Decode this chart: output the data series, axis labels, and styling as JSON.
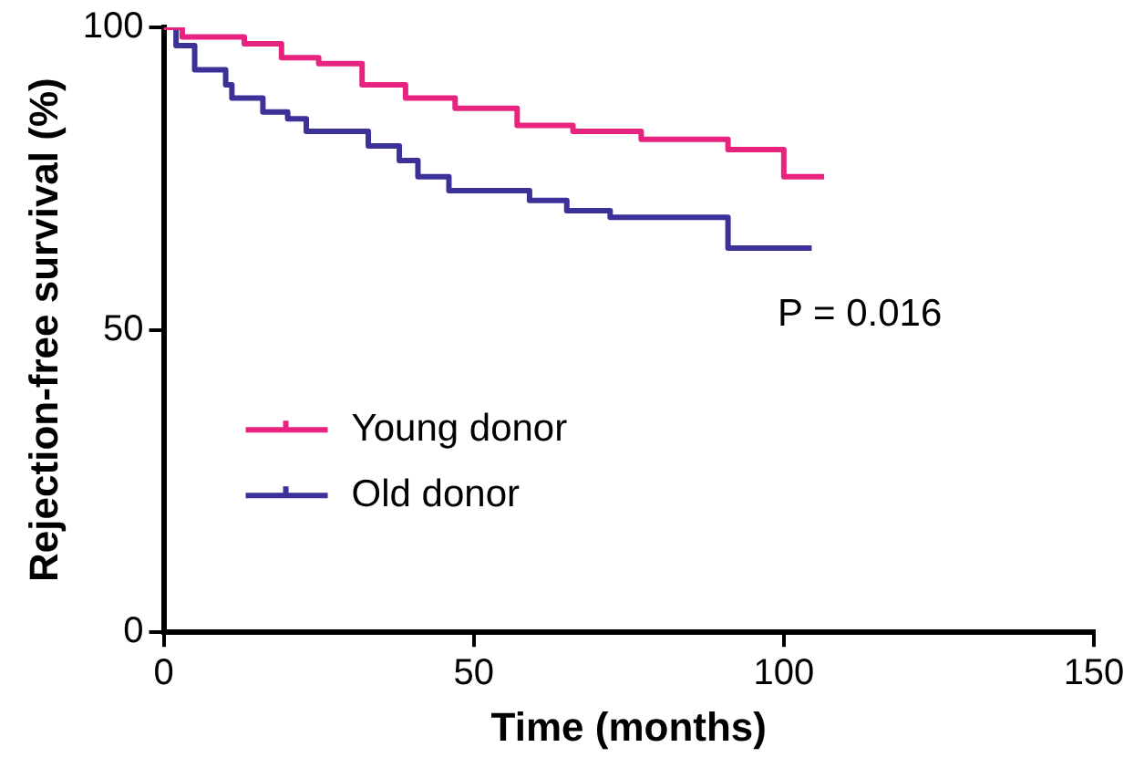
{
  "chart_data": {
    "type": "step",
    "xlabel": "Time (months)",
    "ylabel": "Rejection-free survival (%)",
    "xlim": [
      0,
      150
    ],
    "xticks": [
      0,
      50,
      100,
      150
    ],
    "ylim": [
      0,
      100
    ],
    "yticks": [
      0,
      50,
      100
    ],
    "grid": false,
    "legend": "bottom left",
    "marker": "none",
    "line_style": "solid",
    "annotations": [
      "P = 0.016"
    ],
    "series": [
      {
        "name": "Young donor",
        "color": "#e8237f",
        "x": [
          0,
          3,
          13,
          19,
          25,
          32,
          39,
          47,
          57,
          66,
          77,
          91,
          100,
          106.5
        ],
        "values": [
          100,
          98.4,
          97.3,
          95,
          94,
          90.5,
          88.3,
          86.6,
          83.8,
          82.8,
          81.5,
          79.8,
          75.3,
          75.3
        ]
      },
      {
        "name": "Old donor",
        "color": "#3b3199",
        "x": [
          0,
          2,
          5,
          10,
          11,
          16,
          20,
          23,
          33,
          38,
          41,
          46,
          59,
          65,
          72,
          91,
          104.5
        ],
        "values": [
          100,
          97,
          93,
          90.5,
          88.3,
          86,
          84.9,
          82.8,
          80.4,
          78,
          75.3,
          73,
          71.4,
          69.7,
          68.6,
          63.5,
          63.5
        ]
      }
    ]
  }
}
